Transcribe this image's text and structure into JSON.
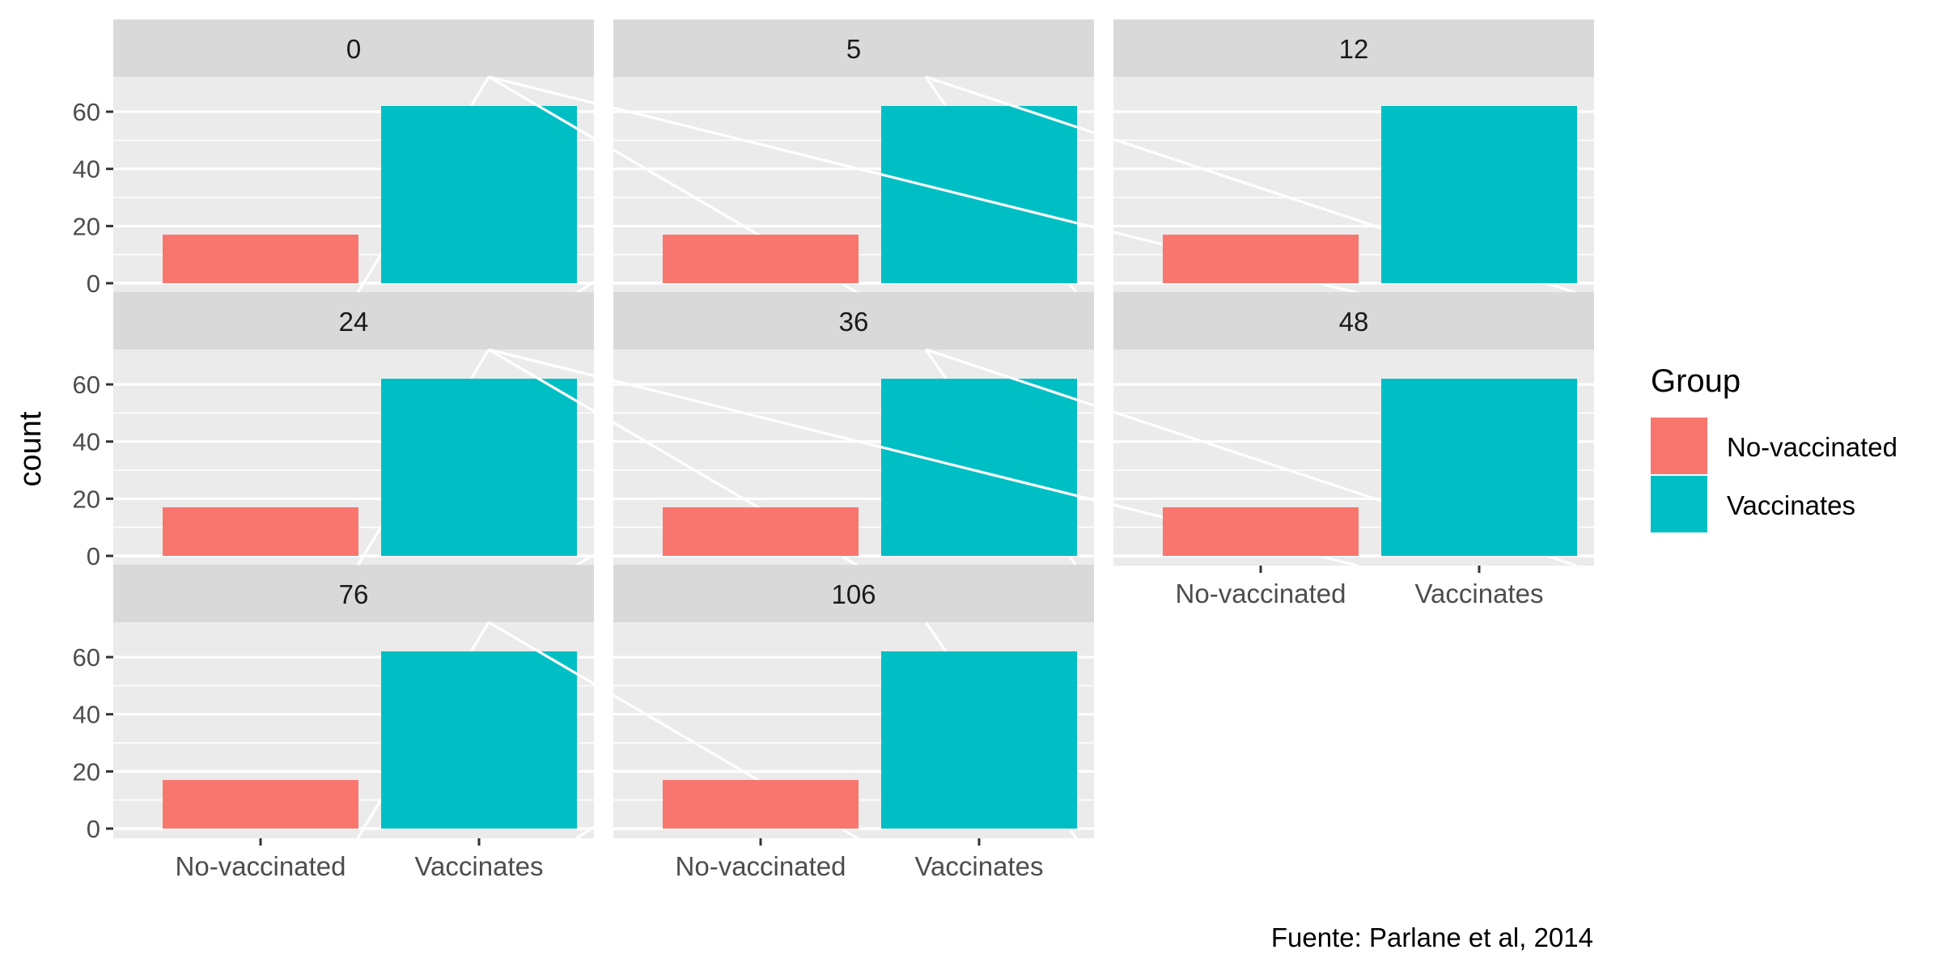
{
  "chart_data": {
    "type": "bar",
    "facets": [
      "0",
      "5",
      "12",
      "24",
      "36",
      "48",
      "76",
      "106"
    ],
    "categories": [
      "No-vaccinated",
      "Vaccinates"
    ],
    "values": [
      [
        17,
        62
      ],
      [
        17,
        62
      ],
      [
        17,
        62
      ],
      [
        17,
        62
      ],
      [
        17,
        62
      ],
      [
        17,
        62
      ],
      [
        17,
        62
      ],
      [
        17,
        62
      ]
    ],
    "ylabel": "count",
    "xlabel": "",
    "ylim": [
      0,
      62
    ],
    "yticks": [
      0,
      20,
      40,
      60
    ],
    "legend": {
      "title": "Group",
      "position": "right",
      "entries": [
        {
          "label": "No-vaccinated",
          "color": "#F8766D"
        },
        {
          "label": "Vaccinates",
          "color": "#00BFC4"
        }
      ]
    },
    "caption": "Fuente: Parlane et al, 2014",
    "grid": true
  },
  "colors": {
    "panel_bg": "#EBEBEB",
    "strip_bg": "#D9D9D9",
    "grid_major": "#FFFFFF"
  }
}
